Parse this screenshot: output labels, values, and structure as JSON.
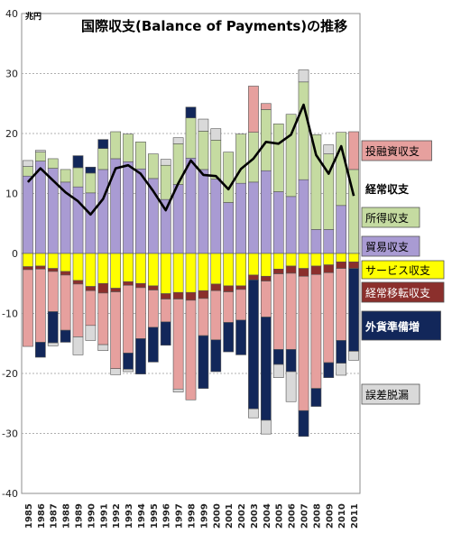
{
  "chart_data": {
    "type": "bar",
    "title": "国際収支(Balance of Payments)の推移",
    "unit_label": "兆円",
    "ylim": [
      -40,
      40
    ],
    "yticks": [
      -40,
      -30,
      -20,
      -10,
      0,
      10,
      20,
      30,
      40
    ],
    "grid": true,
    "categories": [
      "1985",
      "1986",
      "1987",
      "1988",
      "1989",
      "1990",
      "1991",
      "1992",
      "1993",
      "1994",
      "1995",
      "1996",
      "1997",
      "1998",
      "1999",
      "2000",
      "2001",
      "2002",
      "2003",
      "2004",
      "2005",
      "2006",
      "2007",
      "2008",
      "2009",
      "2010",
      "2011"
    ],
    "positive_series": [
      {
        "key": "trade",
        "name": "貿易収支",
        "color": "#a99bd3",
        "values": [
          12.9,
          15.4,
          14.2,
          11.9,
          11.1,
          10.1,
          14.0,
          15.8,
          15.3,
          14.1,
          12.5,
          9.0,
          11.5,
          15.9,
          14.0,
          12.4,
          8.5,
          11.7,
          11.9,
          13.8,
          10.3,
          9.5,
          12.3,
          4.0,
          4.0,
          8.0,
          0.0
        ]
      },
      {
        "key": "income",
        "name": "所得収支",
        "color": "#c5dba1",
        "values": [
          1.6,
          1.5,
          1.6,
          2.1,
          3.2,
          3.3,
          3.5,
          4.5,
          4.6,
          4.5,
          4.1,
          5.7,
          6.8,
          6.7,
          6.4,
          6.5,
          8.4,
          8.2,
          8.3,
          10.2,
          11.3,
          13.7,
          16.3,
          15.8,
          12.6,
          12.2,
          14.0
        ]
      },
      {
        "key": "financial",
        "name": "投融資収支",
        "color": "#e6a09e",
        "values": [
          0,
          0,
          0,
          0,
          0,
          0,
          0,
          0,
          0,
          0,
          0,
          0,
          0,
          0,
          0,
          0,
          0,
          0,
          7.7,
          1.0,
          0,
          0,
          0,
          0,
          0,
          0,
          6.3
        ]
      },
      {
        "key": "errors",
        "name": "誤差脱漏",
        "color": "#d9d9d9",
        "values": [
          1.0,
          0.3,
          0,
          0,
          0,
          0,
          0,
          0,
          0,
          0,
          0,
          1.0,
          1.0,
          0,
          2.0,
          1.9,
          0,
          0,
          0,
          0,
          0,
          0,
          2.0,
          0,
          1.5,
          0,
          0
        ]
      },
      {
        "key": "reserves",
        "name": "外貨準備増",
        "color": "#12275a",
        "values": [
          0,
          0,
          0,
          0,
          2.0,
          1.0,
          1.5,
          0,
          0,
          0,
          0,
          0,
          0,
          1.8,
          0,
          0,
          0,
          0,
          0,
          0,
          0,
          0,
          0,
          0,
          0,
          0,
          0
        ]
      }
    ],
    "negative_series": [
      {
        "key": "services",
        "name": "サービス収支",
        "color": "#ffff00",
        "values": [
          -2.2,
          -2.1,
          -2.5,
          -3.0,
          -4.5,
          -5.5,
          -5.0,
          -5.8,
          -4.7,
          -5.0,
          -5.4,
          -6.7,
          -6.5,
          -6.5,
          -6.2,
          -5.1,
          -5.4,
          -5.4,
          -3.6,
          -3.8,
          -2.6,
          -2.1,
          -2.5,
          -2.1,
          -1.9,
          -1.4,
          -1.4
        ]
      },
      {
        "key": "transfers",
        "name": "経常移転収支",
        "color": "#8b2f2c",
        "values": [
          -0.5,
          -0.5,
          -0.5,
          -0.6,
          -0.6,
          -0.7,
          -1.6,
          -0.6,
          -0.6,
          -0.7,
          -0.7,
          -0.9,
          -1.1,
          -1.3,
          -1.3,
          -1.1,
          -1.0,
          -0.6,
          -0.8,
          -0.8,
          -0.8,
          -1.2,
          -1.3,
          -1.4,
          -1.3,
          -1.1,
          -1.1
        ]
      },
      {
        "key": "financial",
        "name": "投融資収支",
        "color": "#e6a09e",
        "values": [
          -12.8,
          -12.2,
          -6.7,
          -9.2,
          -8.8,
          -5.8,
          -8.6,
          -12.8,
          -11.3,
          -8.5,
          -6.2,
          -3.8,
          -15.0,
          -16.6,
          -6.2,
          -8.2,
          -5.1,
          -5.1,
          0,
          -6.0,
          -12.6,
          -12.7,
          -22.4,
          -19.0,
          -15.0,
          -12.0,
          0
        ]
      },
      {
        "key": "reserves",
        "name": "外貨準備増",
        "color": "#12275a",
        "values": [
          0,
          -2.5,
          -5.2,
          -2.0,
          0,
          0,
          0,
          0,
          -2.7,
          -5.9,
          -5.8,
          -3.9,
          0,
          0,
          -8.8,
          -5.3,
          -4.9,
          -5.8,
          -21.5,
          -17.2,
          -2.5,
          -3.7,
          -4.3,
          -3.0,
          -2.5,
          -3.8,
          -13.8
        ]
      },
      {
        "key": "errors",
        "name": "誤差脱漏",
        "color": "#d9d9d9",
        "values": [
          0,
          0,
          -0.5,
          0,
          -3.0,
          -2.5,
          -1.0,
          -1.0,
          -0.4,
          0,
          0,
          0,
          -0.5,
          0,
          0,
          0,
          0,
          0,
          -1.5,
          -2.3,
          -2.2,
          -5.0,
          0,
          0,
          0,
          -2.0,
          -1.5
        ]
      }
    ],
    "line": {
      "name": "経常収支",
      "color": "#000000",
      "values": [
        11.9,
        14.2,
        12.2,
        10.2,
        8.7,
        6.5,
        9.1,
        14.2,
        14.7,
        13.3,
        10.4,
        7.2,
        11.7,
        15.5,
        13.1,
        12.9,
        10.7,
        14.1,
        15.8,
        18.6,
        18.3,
        19.8,
        24.8,
        16.4,
        13.3,
        17.9,
        9.6
      ]
    },
    "legend": [
      {
        "label": "投融資収支",
        "bg": "#e6a09e",
        "fg": "#000000",
        "bold": false,
        "border": true
      },
      {
        "label": "経常収支",
        "bg": "#ffffff",
        "fg": "#000000",
        "bold": true,
        "border": false
      },
      {
        "label": "所得収支",
        "bg": "#c5dba1",
        "fg": "#000000",
        "bold": false,
        "border": true
      },
      {
        "label": "貿易収支",
        "bg": "#a99bd3",
        "fg": "#000000",
        "bold": false,
        "border": true
      },
      {
        "label": "サービス収支",
        "bg": "#ffff00",
        "fg": "#000000",
        "bold": false,
        "border": true
      },
      {
        "label": "経常移転収支",
        "bg": "#8b2f2c",
        "fg": "#ffffff",
        "bold": false,
        "border": true
      },
      {
        "label": "外貨準備増",
        "bg": "#12275a",
        "fg": "#ffffff",
        "bold": true,
        "border": true
      },
      {
        "label": "誤差脱漏",
        "bg": "#d9d9d9",
        "fg": "#000000",
        "bold": false,
        "border": true
      }
    ]
  }
}
